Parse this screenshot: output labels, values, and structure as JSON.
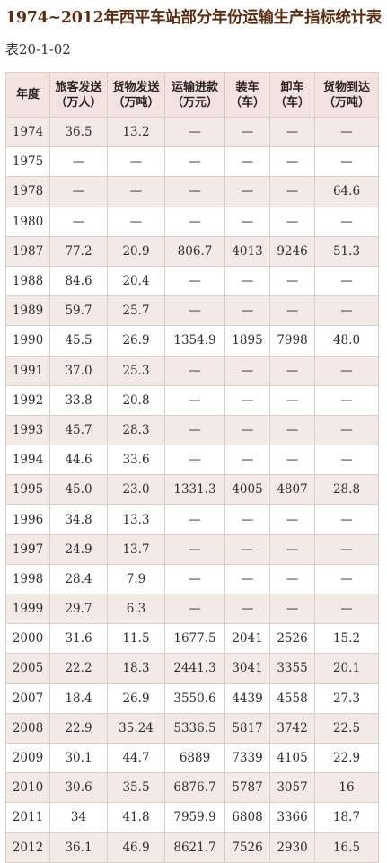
{
  "title": "1974~2012年西平车站部分年份运输生产指标统计表",
  "table_code": "表20-1-02",
  "columns": [
    {
      "line1": "年度",
      "line2": ""
    },
    {
      "line1": "旅客发送",
      "line2": "（万人）"
    },
    {
      "line1": "货物发送",
      "line2": "（万吨）"
    },
    {
      "line1": "运输进款",
      "line2": "（万元）"
    },
    {
      "line1": "装车",
      "line2": "（车）"
    },
    {
      "line1": "卸车",
      "line2": "（车）"
    },
    {
      "line1": "货物到达",
      "line2": "（万吨）"
    }
  ],
  "rows": [
    [
      "1974",
      "36.5",
      "13.2",
      "—",
      "—",
      "—",
      "—"
    ],
    [
      "1975",
      "—",
      "—",
      "—",
      "—",
      "—",
      "—"
    ],
    [
      "1978",
      "—",
      "—",
      "—",
      "—",
      "—",
      "64.6"
    ],
    [
      "1980",
      "—",
      "—",
      "—",
      "—",
      "—",
      "—"
    ],
    [
      "1987",
      "77.2",
      "20.9",
      "806.7",
      "4013",
      "9246",
      "51.3"
    ],
    [
      "1988",
      "84.6",
      "20.4",
      "—",
      "—",
      "—",
      "—"
    ],
    [
      "1989",
      "59.7",
      "25.7",
      "—",
      "—",
      "—",
      "—"
    ],
    [
      "1990",
      "45.5",
      "26.9",
      "1354.9",
      "1895",
      "7998",
      "48.0"
    ],
    [
      "1991",
      "37.0",
      "25.3",
      "—",
      "—",
      "—",
      "—"
    ],
    [
      "1992",
      "33.8",
      "20.8",
      "—",
      "—",
      "—",
      "—"
    ],
    [
      "1993",
      "45.7",
      "28.3",
      "—",
      "—",
      "—",
      "—"
    ],
    [
      "1994",
      "44.6",
      "33.6",
      "—",
      "—",
      "—",
      "—"
    ],
    [
      "1995",
      "45.0",
      "23.0",
      "1331.3",
      "4005",
      "4807",
      "28.8"
    ],
    [
      "1996",
      "34.8",
      "13.3",
      "—",
      "—",
      "—",
      "—"
    ],
    [
      "1997",
      "24.9",
      "13.7",
      "—",
      "—",
      "—",
      "—"
    ],
    [
      "1998",
      "28.4",
      "7.9",
      "—",
      "—",
      "—",
      "—"
    ],
    [
      "1999",
      "29.7",
      "6.3",
      "—",
      "—",
      "—",
      "—"
    ],
    [
      "2000",
      "31.6",
      "11.5",
      "1677.5",
      "2041",
      "2526",
      "15.2"
    ],
    [
      "2005",
      "22.2",
      "18.3",
      "2441.3",
      "3041",
      "3355",
      "20.1"
    ],
    [
      "2007",
      "18.4",
      "26.9",
      "3550.6",
      "4439",
      "4558",
      "27.3"
    ],
    [
      "2008",
      "22.9",
      "35.24",
      "5336.5",
      "5817",
      "3742",
      "22.5"
    ],
    [
      "2009",
      "30.1",
      "44.7",
      "6889",
      "7339",
      "4105",
      "22.9"
    ],
    [
      "2010",
      "30.6",
      "35.5",
      "6876.7",
      "5787",
      "3057",
      "16"
    ],
    [
      "2011",
      "34",
      "41.8",
      "7959.9",
      "6808",
      "3366",
      "18.7"
    ],
    [
      "2012",
      "36.1",
      "46.9",
      "8621.7",
      "7526",
      "2930",
      "16.5"
    ]
  ],
  "colors": {
    "title": "#5a2e12",
    "header_bg": "#f2e3e0",
    "stripe_bg": "#f3eae7",
    "border": "#d9cfc9"
  }
}
